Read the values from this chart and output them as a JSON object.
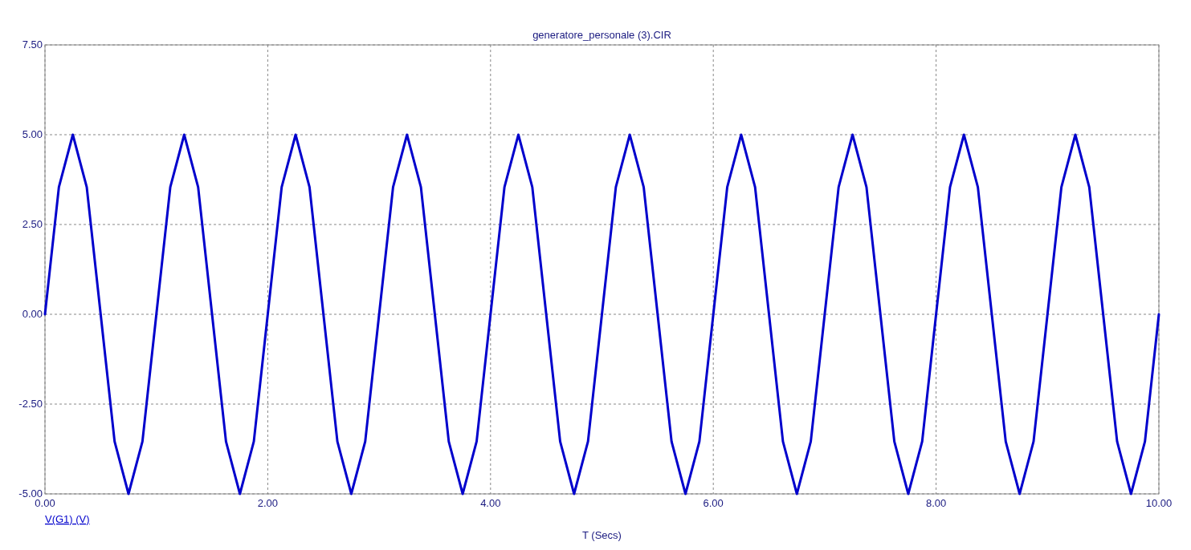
{
  "chart_data": {
    "type": "line",
    "title": "generatore_personale (3).CIR",
    "xlabel": "T (Secs)",
    "x": [
      0,
      0.125,
      0.25,
      0.375,
      0.5,
      0.625,
      0.75,
      0.875,
      1,
      1.125,
      1.25,
      1.375,
      1.5,
      1.625,
      1.75,
      1.875,
      2,
      2.125,
      2.25,
      2.375,
      2.5,
      2.625,
      2.75,
      2.875,
      3,
      3.125,
      3.25,
      3.375,
      3.5,
      3.625,
      3.75,
      3.875,
      4,
      4.125,
      4.25,
      4.375,
      4.5,
      4.625,
      4.75,
      4.875,
      5,
      5.125,
      5.25,
      5.375,
      5.5,
      5.625,
      5.75,
      5.875,
      6,
      6.125,
      6.25,
      6.375,
      6.5,
      6.625,
      6.75,
      6.875,
      7,
      7.125,
      7.25,
      7.375,
      7.5,
      7.625,
      7.75,
      7.875,
      8,
      8.125,
      8.25,
      8.375,
      8.5,
      8.625,
      8.75,
      8.875,
      9,
      9.125,
      9.25,
      9.375,
      9.5,
      9.625,
      9.75,
      9.875,
      10
    ],
    "series": [
      {
        "name": "V(G1) (V)",
        "color": "#0000cc",
        "values": [
          0,
          3.54,
          5,
          3.54,
          0,
          -3.54,
          -5,
          -3.54,
          0,
          3.54,
          5,
          3.54,
          0,
          -3.54,
          -5,
          -3.54,
          0,
          3.54,
          5,
          3.54,
          0,
          -3.54,
          -5,
          -3.54,
          0,
          3.54,
          5,
          3.54,
          0,
          -3.54,
          -5,
          -3.54,
          0,
          3.54,
          5,
          3.54,
          0,
          -3.54,
          -5,
          -3.54,
          0,
          3.54,
          5,
          3.54,
          0,
          -3.54,
          -5,
          -3.54,
          0,
          3.54,
          5,
          3.54,
          0,
          -3.54,
          -5,
          -3.54,
          0,
          3.54,
          5,
          3.54,
          0,
          -3.54,
          -5,
          -3.54,
          0,
          3.54,
          5,
          3.54,
          0,
          -3.54,
          -5,
          -3.54,
          0,
          3.54,
          5,
          3.54,
          0,
          -3.54,
          -5,
          -3.54,
          0
        ]
      }
    ],
    "xlim": [
      0,
      10
    ],
    "xticks": [
      {
        "value": 0,
        "label": "0.00"
      },
      {
        "value": 2,
        "label": "2.00"
      },
      {
        "value": 4,
        "label": "4.00"
      },
      {
        "value": 6,
        "label": "6.00"
      },
      {
        "value": 8,
        "label": "8.00"
      },
      {
        "value": 10,
        "label": "10.00"
      }
    ],
    "ylim": [
      -5,
      7.5
    ],
    "yticks": [
      {
        "value": -5,
        "label": "-5.00"
      },
      {
        "value": -2.5,
        "label": "-2.50"
      },
      {
        "value": 0,
        "label": "0.00"
      },
      {
        "value": 2.5,
        "label": "2.50"
      },
      {
        "value": 5,
        "label": "5.00"
      },
      {
        "value": 7.5,
        "label": "7.50"
      }
    ],
    "grid": true,
    "legend": "bottom left",
    "line_style": "solid",
    "marker": "none"
  }
}
